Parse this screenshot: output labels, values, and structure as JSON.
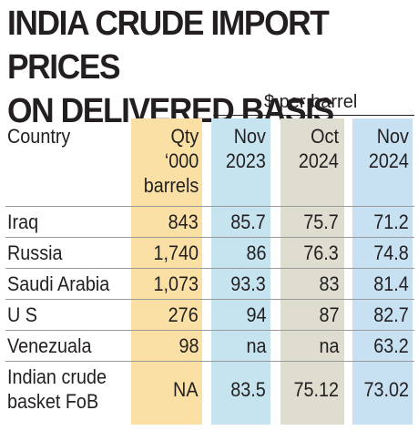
{
  "title_line1": "INDIA CRUDE IMPORT PRICES",
  "title_line2": "ON DELIVERED BASIS",
  "unit": "$ per barrel",
  "header": {
    "country": "Country",
    "qty_line1": "Qty",
    "qty_line2": "‘000",
    "qty_line3": "barrels",
    "nov23_line1": "Nov",
    "nov23_line2": "2023",
    "oct24_line1": "Oct",
    "oct24_line2": "2024",
    "nov24_line1": "Nov",
    "nov24_line2": "2024"
  },
  "colors": {
    "qty_column": "#fae0a4",
    "nov2023_column": "#c5e4ef",
    "oct2024_column": "#deddd0",
    "nov2024_column": "#c7e1f2"
  },
  "chart_data": {
    "type": "table",
    "columns": [
      "Country",
      "Qty ‘000 barrels",
      "Nov 2023",
      "Oct 2024",
      "Nov 2024"
    ],
    "rows": [
      {
        "name_line1": "Iraq",
        "name_line2": "",
        "qty": "843",
        "nov2023": "85.7",
        "oct2024": "75.7",
        "nov2024": "71.2"
      },
      {
        "name_line1": "Russia",
        "name_line2": "",
        "qty": "1,740",
        "nov2023": "86",
        "oct2024": "76.3",
        "nov2024": "74.8"
      },
      {
        "name_line1": "Saudi Arabia",
        "name_line2": "",
        "qty": "1,073",
        "nov2023": "93.3",
        "oct2024": "83",
        "nov2024": "81.4"
      },
      {
        "name_line1": "U S",
        "name_line2": "",
        "qty": "276",
        "nov2023": "94",
        "oct2024": "87",
        "nov2024": "82.7"
      },
      {
        "name_line1": "Venezuala",
        "name_line2": "",
        "qty": "98",
        "nov2023": "na",
        "oct2024": "na",
        "nov2024": "63.2"
      },
      {
        "name_line1": "Indian crude",
        "name_line2": "basket FoB",
        "qty": "NA",
        "nov2023": "83.5",
        "oct2024": "75.12",
        "nov2024": "73.02"
      }
    ]
  }
}
